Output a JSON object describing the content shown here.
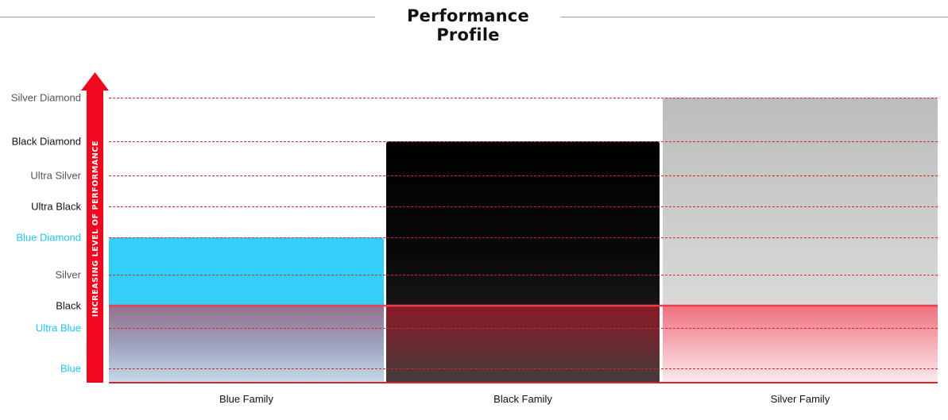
{
  "title": "Performance Profile",
  "chart_data": {
    "type": "bar",
    "title": "Performance Profile",
    "ylabel": "INCREASING LEVEL OF PERFORMANCE",
    "xlabel": "",
    "levels": [
      {
        "label": "Blue",
        "color": "#22c3ee"
      },
      {
        "label": "Ultra Blue",
        "color": "#22c3ee"
      },
      {
        "label": "Black",
        "color": "#111111"
      },
      {
        "label": "Silver",
        "color": "#555555"
      },
      {
        "label": "Blue Diamond",
        "color": "#22c3ee"
      },
      {
        "label": "Ultra Black",
        "color": "#111111"
      },
      {
        "label": "Ultra Silver",
        "color": "#555555"
      },
      {
        "label": "Black Diamond",
        "color": "#111111"
      },
      {
        "label": "Silver Diamond",
        "color": "#555555"
      }
    ],
    "categories": [
      "Blue Family",
      "Black Family",
      "Silver Family"
    ],
    "values": [
      "Blue Diamond",
      "Black Diamond",
      "Silver Diamond"
    ],
    "bar_colors": [
      "#33cff8",
      "#000000",
      "#bdbdbd"
    ],
    "threshold": "Black",
    "accent": "#f0081f",
    "grid": true,
    "grid_style": "dashed red"
  }
}
